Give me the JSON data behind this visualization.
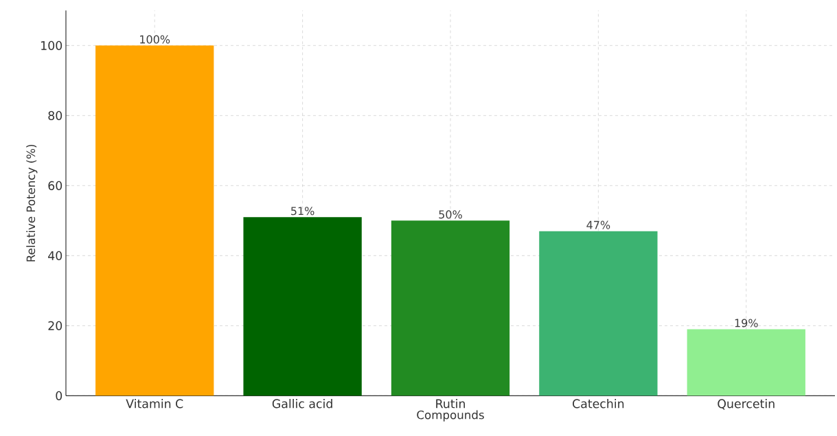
{
  "chart_data": {
    "type": "bar",
    "xlabel": "Compounds",
    "ylabel": "Relative Potency (%)",
    "categories": [
      "Vitamin C",
      "Gallic acid",
      "Rutin",
      "Catechin",
      "Quercetin"
    ],
    "values": [
      100,
      51,
      50,
      47,
      19
    ],
    "colors": [
      "#ffa500",
      "#006400",
      "#228b22",
      "#3cb371",
      "#90ee90"
    ],
    "value_labels": [
      "100%",
      "51%",
      "50%",
      "47%",
      "19%"
    ],
    "ylim": [
      0,
      110
    ],
    "yticks": [
      0,
      20,
      40,
      60,
      80,
      100
    ],
    "grid": true
  }
}
